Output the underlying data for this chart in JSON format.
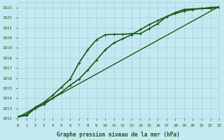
{
  "xlabel": "Graphe pression niveau de la mer (hPa)",
  "background_color": "#c5e8f0",
  "grid_color": "#a8cdd8",
  "line_color": "#1a5c1a",
  "xlim": [
    0,
    23
  ],
  "ylim": [
    1012,
    1023.5
  ],
  "yticks": [
    1012,
    1013,
    1014,
    1015,
    1016,
    1017,
    1018,
    1019,
    1020,
    1021,
    1022,
    1023
  ],
  "xticks": [
    0,
    1,
    2,
    3,
    4,
    5,
    6,
    7,
    8,
    9,
    10,
    11,
    12,
    13,
    14,
    15,
    16,
    17,
    18,
    19,
    20,
    21,
    22,
    23
  ],
  "series": [
    {
      "x": [
        0,
        1,
        2,
        3,
        4,
        5,
        6,
        7,
        8,
        9,
        10,
        11,
        12,
        13,
        14,
        15,
        16,
        17,
        18,
        19,
        20,
        21,
        22,
        23
      ],
      "y": [
        1012.2,
        1012.4,
        1013.1,
        1013.6,
        1014.3,
        1015.1,
        1015.9,
        1017.5,
        1018.8,
        1019.8,
        1020.3,
        1020.35,
        1020.35,
        1020.4,
        1020.4,
        1020.9,
        1021.4,
        1022.1,
        1022.5,
        1022.8,
        1022.85,
        1022.9,
        1022.9,
        1023.0
      ],
      "linewidth": 1.2,
      "marker": "+",
      "markersize": 3.5
    },
    {
      "x": [
        0,
        1,
        2,
        3,
        4,
        5,
        6,
        7,
        8,
        9,
        10,
        11,
        12,
        13,
        14,
        15,
        16,
        17,
        18,
        19,
        20,
        21,
        22,
        23
      ],
      "y": [
        1012.15,
        1012.3,
        1013.0,
        1013.4,
        1014.0,
        1014.6,
        1015.3,
        1015.9,
        1016.8,
        1017.8,
        1018.8,
        1019.5,
        1019.9,
        1020.3,
        1020.8,
        1021.3,
        1021.7,
        1022.1,
        1022.4,
        1022.65,
        1022.8,
        1022.9,
        1023.0,
        1023.05
      ],
      "linewidth": 1.2,
      "marker": "+",
      "markersize": 3.5
    },
    {
      "x": [
        0,
        23
      ],
      "y": [
        1012.1,
        1023.1
      ],
      "linewidth": 1.0,
      "marker": null,
      "markersize": 0
    }
  ]
}
